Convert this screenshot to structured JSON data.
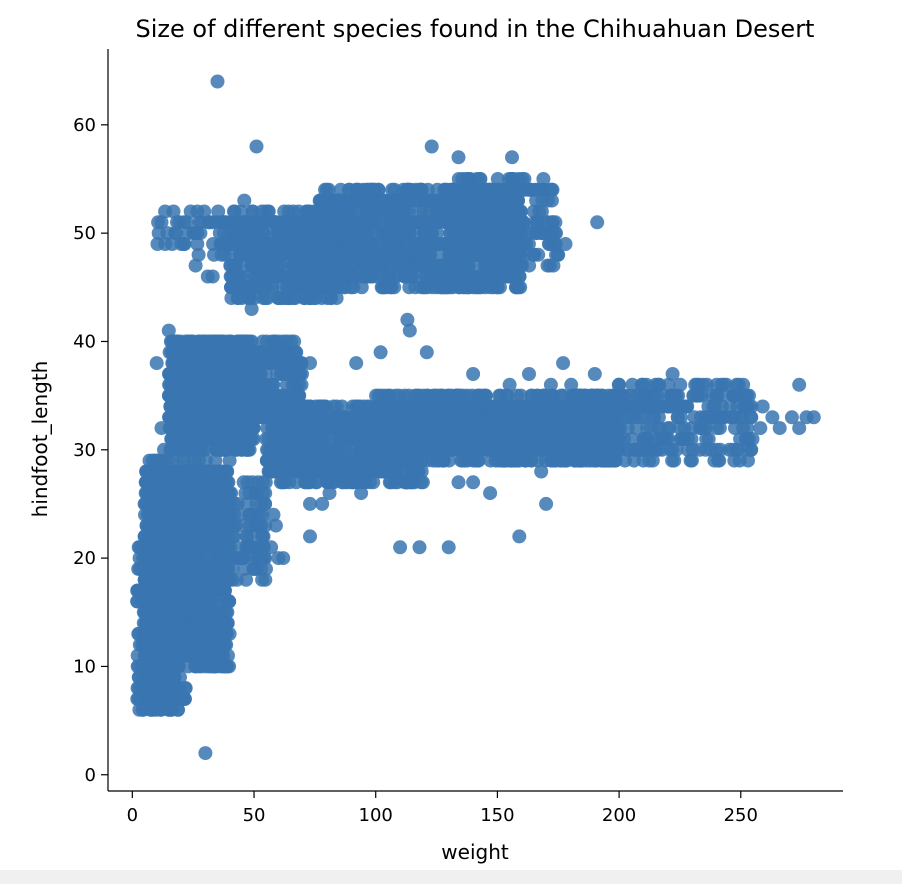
{
  "chart_data": {
    "type": "scatter",
    "title": "Size of different species found in the Chihuahuan Desert",
    "xlabel": "weight",
    "ylabel": "hindfoot_length",
    "xlim": [
      -10,
      292
    ],
    "ylim": [
      -1.5,
      67
    ],
    "xticks": [
      0,
      50,
      100,
      150,
      200,
      250
    ],
    "yticks": [
      0,
      10,
      20,
      30,
      40,
      50,
      60
    ],
    "marker_color": "#3A75B0",
    "grid": false,
    "clusters": [
      {
        "x": [
          10,
          50
        ],
        "y": [
          48,
          52
        ],
        "n": 60
      },
      {
        "x": [
          40,
          85
        ],
        "y": [
          44,
          52
        ],
        "n": 420
      },
      {
        "x": [
          75,
          160
        ],
        "y": [
          45,
          54
        ],
        "n": 900
      },
      {
        "x": [
          130,
          175
        ],
        "y": [
          47,
          55
        ],
        "n": 250
      },
      {
        "x": [
          15,
          50
        ],
        "y": [
          30,
          40
        ],
        "n": 900
      },
      {
        "x": [
          45,
          70
        ],
        "y": [
          32,
          40
        ],
        "n": 200
      },
      {
        "x": [
          55,
          120
        ],
        "y": [
          27,
          34
        ],
        "n": 600
      },
      {
        "x": [
          100,
          200
        ],
        "y": [
          29,
          35
        ],
        "n": 900
      },
      {
        "x": [
          180,
          255
        ],
        "y": [
          29,
          36
        ],
        "n": 300
      },
      {
        "x": [
          5,
          40
        ],
        "y": [
          10,
          29
        ],
        "n": 1100
      },
      {
        "x": [
          2,
          22
        ],
        "y": [
          6,
          21
        ],
        "n": 350
      },
      {
        "x": [
          22,
          55
        ],
        "y": [
          18,
          27
        ],
        "n": 200
      }
    ],
    "points": [
      [
        35,
        64
      ],
      [
        51,
        58
      ],
      [
        123,
        58
      ],
      [
        134,
        57
      ],
      [
        156,
        57
      ],
      [
        12,
        51
      ],
      [
        24,
        52
      ],
      [
        46,
        53
      ],
      [
        191,
        51
      ],
      [
        178,
        49
      ],
      [
        23,
        50
      ],
      [
        31,
        46
      ],
      [
        40,
        50
      ],
      [
        26,
        47
      ],
      [
        33,
        46
      ],
      [
        15,
        41
      ],
      [
        10,
        38
      ],
      [
        49,
        43
      ],
      [
        55,
        46
      ],
      [
        62,
        45
      ],
      [
        113,
        42
      ],
      [
        114,
        41
      ],
      [
        121,
        39
      ],
      [
        92,
        38
      ],
      [
        102,
        39
      ],
      [
        73,
        38
      ],
      [
        140,
        37
      ],
      [
        163,
        37
      ],
      [
        177,
        38
      ],
      [
        190,
        37
      ],
      [
        155,
        36
      ],
      [
        172,
        36
      ],
      [
        200,
        36
      ],
      [
        215,
        36
      ],
      [
        222,
        37
      ],
      [
        232,
        36
      ],
      [
        243,
        36
      ],
      [
        274,
        36
      ],
      [
        277,
        33
      ],
      [
        280,
        33
      ],
      [
        263,
        33
      ],
      [
        266,
        32
      ],
      [
        259,
        34
      ],
      [
        246,
        33
      ],
      [
        252,
        34
      ],
      [
        235,
        32
      ],
      [
        241,
        33
      ],
      [
        228,
        34
      ],
      [
        210,
        33
      ],
      [
        258,
        32
      ],
      [
        274,
        32
      ],
      [
        271,
        33
      ],
      [
        110,
        21
      ],
      [
        118,
        21
      ],
      [
        130,
        21
      ],
      [
        159,
        22
      ],
      [
        73,
        22
      ],
      [
        170,
        25
      ],
      [
        168,
        28
      ],
      [
        112,
        27
      ],
      [
        134,
        27
      ],
      [
        140,
        27
      ],
      [
        147,
        26
      ],
      [
        94,
        26
      ],
      [
        81,
        26
      ],
      [
        78,
        25
      ],
      [
        73,
        25
      ],
      [
        61,
        27
      ],
      [
        59,
        23
      ],
      [
        54,
        20
      ],
      [
        57,
        21
      ],
      [
        60,
        20
      ],
      [
        62,
        20
      ],
      [
        58,
        24
      ],
      [
        49,
        21
      ],
      [
        30,
        2
      ],
      [
        16,
        6
      ],
      [
        6,
        7
      ],
      [
        14,
        9
      ],
      [
        8,
        9
      ],
      [
        17,
        9
      ],
      [
        12,
        8
      ],
      [
        3,
        21
      ],
      [
        2,
        16
      ],
      [
        19,
        10
      ],
      [
        23,
        12
      ],
      [
        28,
        15
      ],
      [
        31,
        17
      ],
      [
        34,
        19
      ],
      [
        38,
        21
      ],
      [
        45,
        20
      ],
      [
        42,
        25
      ],
      [
        51,
        25
      ],
      [
        20,
        36
      ],
      [
        18,
        35
      ],
      [
        17,
        33
      ],
      [
        12,
        32
      ],
      [
        13,
        30
      ],
      [
        9,
        29
      ],
      [
        21,
        31
      ],
      [
        16,
        37
      ]
    ]
  }
}
